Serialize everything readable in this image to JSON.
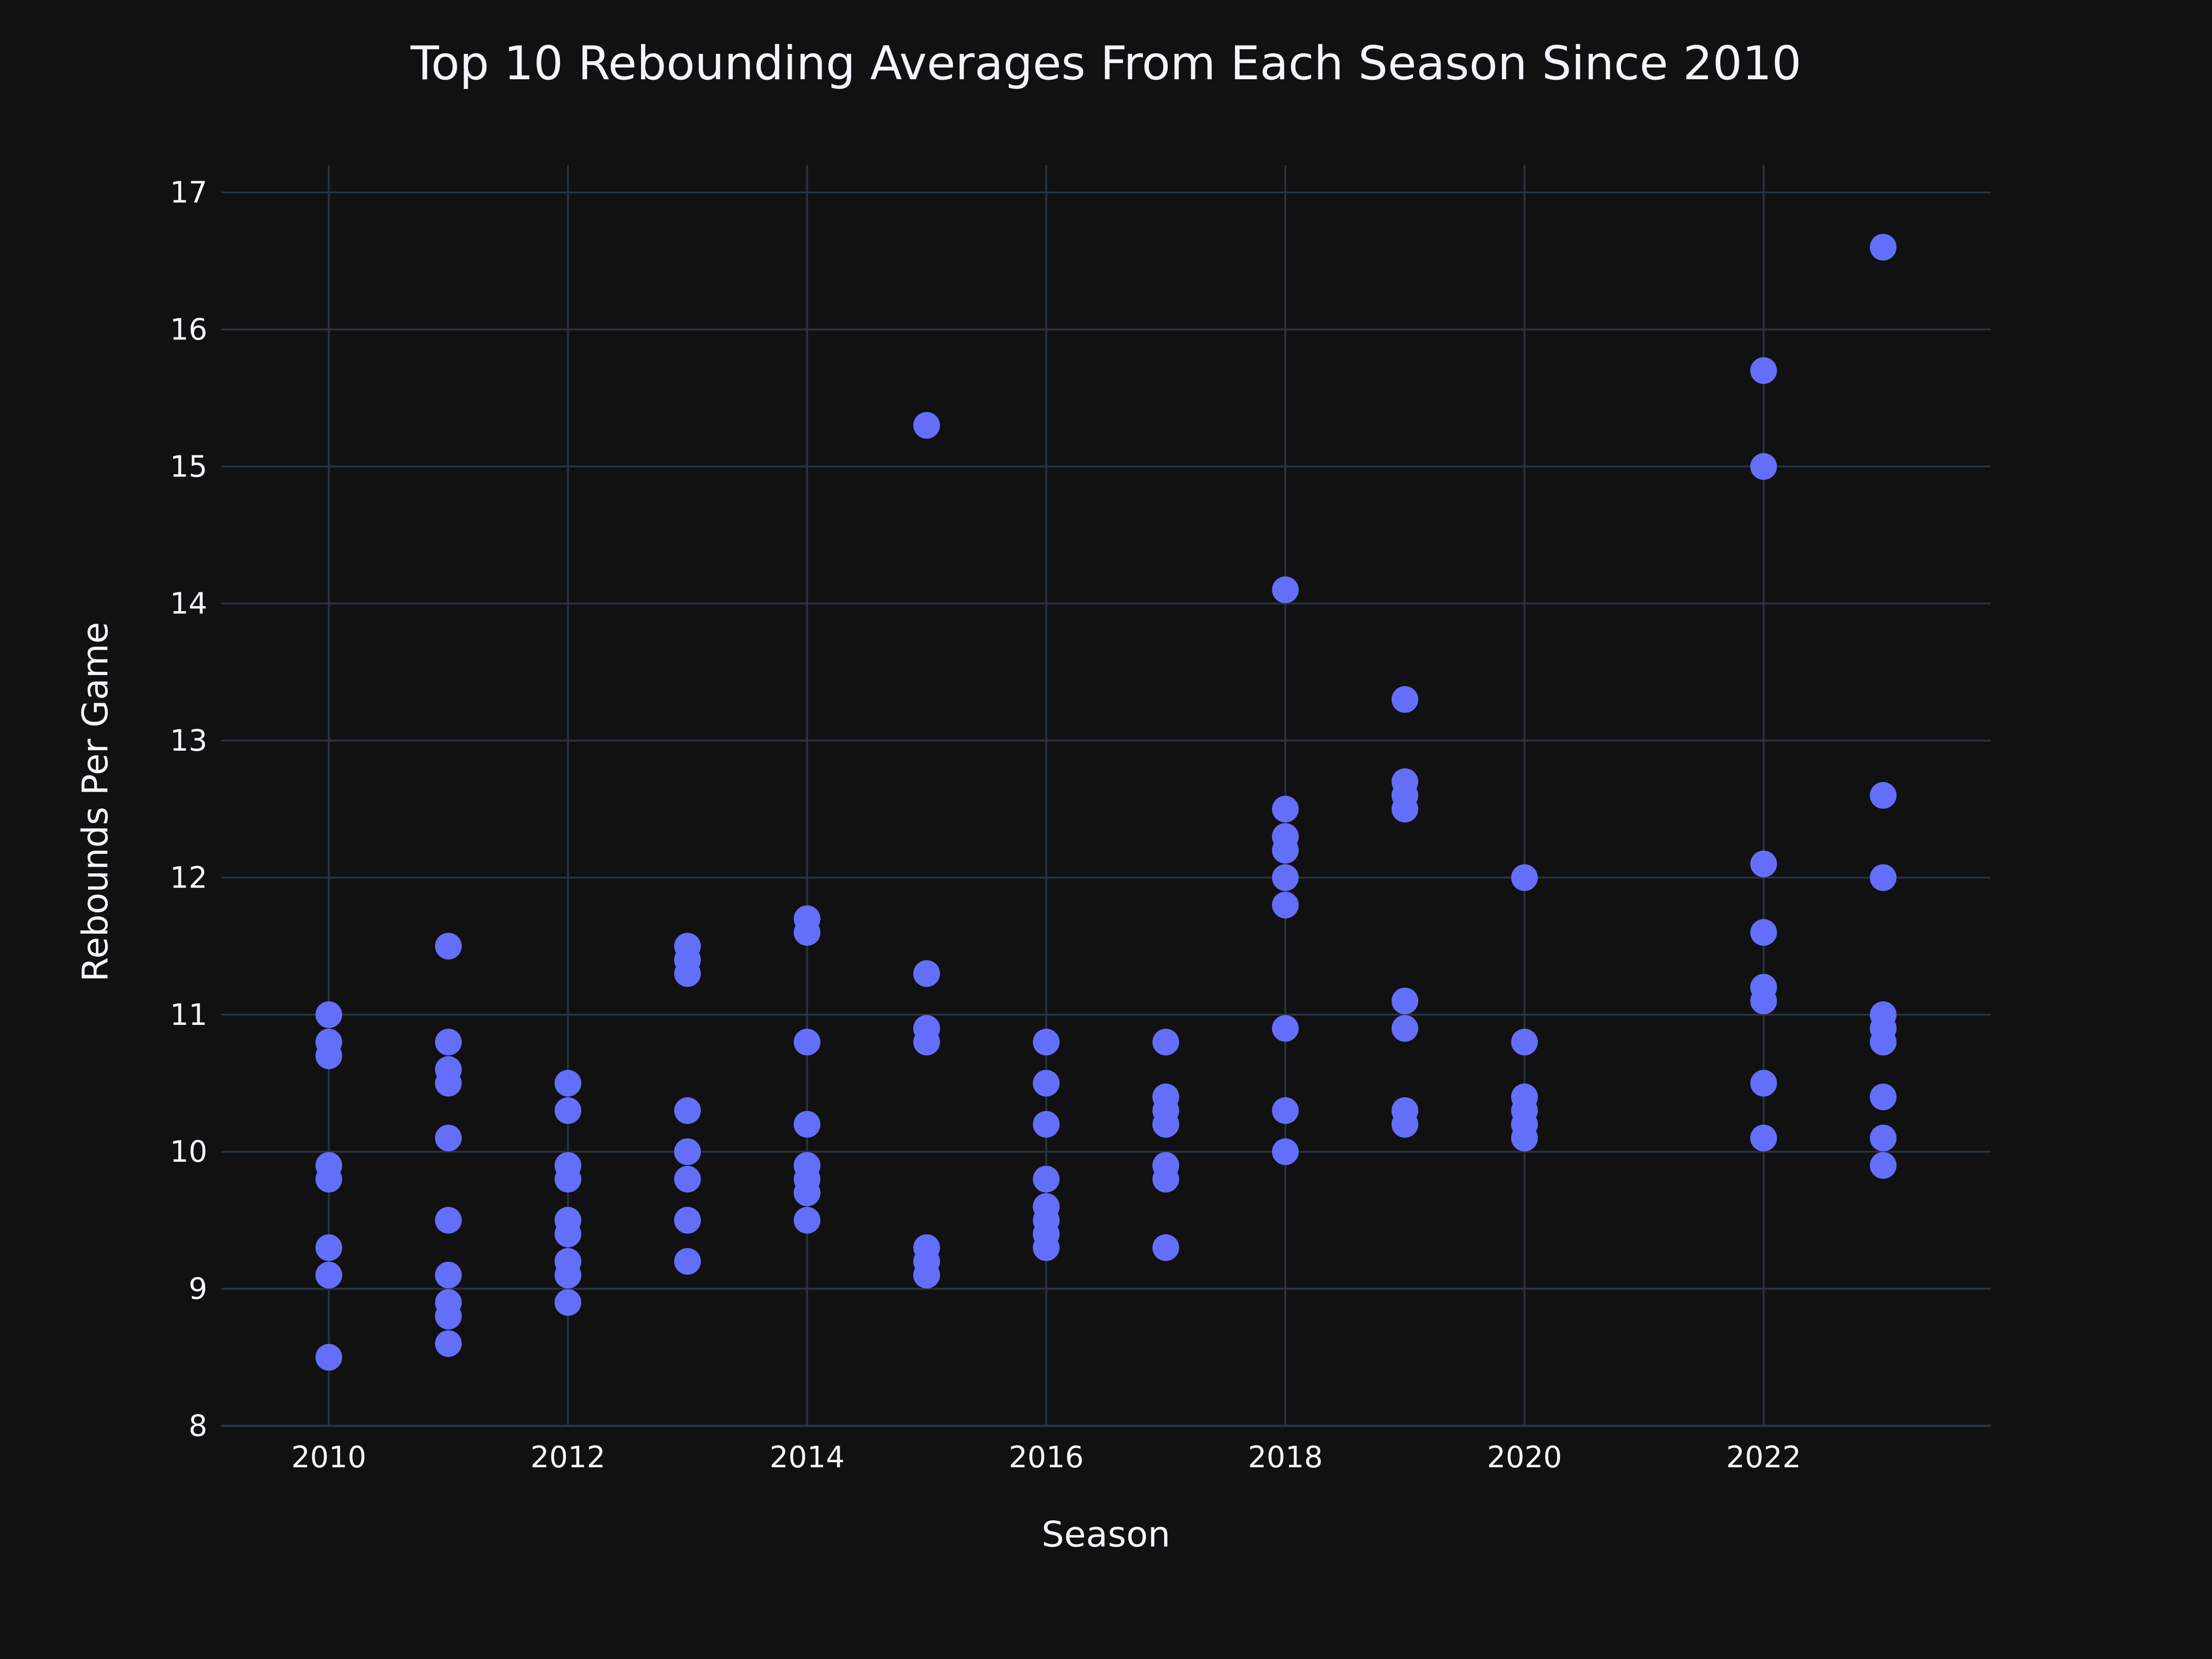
{
  "chart_data": {
    "type": "scatter",
    "title": "Top 10 Rebounding Averages From Each Season Since 2010",
    "xlabel": "Season",
    "ylabel": "Rebounds Per Game",
    "xlim": [
      2009.1,
      2023.9
    ],
    "ylim": [
      8,
      17.2
    ],
    "x_ticks": [
      2010,
      2012,
      2014,
      2016,
      2018,
      2020,
      2022
    ],
    "y_ticks": [
      8,
      9,
      10,
      11,
      12,
      13,
      14,
      15,
      16,
      17
    ],
    "grid": true,
    "legend": "none",
    "colors": {
      "background": "#111111",
      "grid": "#283442",
      "marker": "#636efa",
      "text": "#f2f5fa"
    },
    "points": [
      {
        "x": 2010,
        "y": 11.0
      },
      {
        "x": 2010,
        "y": 10.8
      },
      {
        "x": 2010,
        "y": 10.8
      },
      {
        "x": 2010,
        "y": 10.7
      },
      {
        "x": 2010,
        "y": 9.9
      },
      {
        "x": 2010,
        "y": 9.8
      },
      {
        "x": 2010,
        "y": 9.3
      },
      {
        "x": 2010,
        "y": 9.1
      },
      {
        "x": 2010,
        "y": 9.1
      },
      {
        "x": 2010,
        "y": 8.5
      },
      {
        "x": 2011,
        "y": 11.5
      },
      {
        "x": 2011,
        "y": 10.8
      },
      {
        "x": 2011,
        "y": 10.6
      },
      {
        "x": 2011,
        "y": 10.5
      },
      {
        "x": 2011,
        "y": 10.1
      },
      {
        "x": 2011,
        "y": 9.5
      },
      {
        "x": 2011,
        "y": 9.1
      },
      {
        "x": 2011,
        "y": 8.9
      },
      {
        "x": 2011,
        "y": 8.8
      },
      {
        "x": 2011,
        "y": 8.6
      },
      {
        "x": 2012,
        "y": 10.5
      },
      {
        "x": 2012,
        "y": 10.3
      },
      {
        "x": 2012,
        "y": 9.9
      },
      {
        "x": 2012,
        "y": 9.8
      },
      {
        "x": 2012,
        "y": 9.5
      },
      {
        "x": 2012,
        "y": 9.4
      },
      {
        "x": 2012,
        "y": 9.2
      },
      {
        "x": 2012,
        "y": 9.1
      },
      {
        "x": 2012,
        "y": 8.9
      },
      {
        "x": 2012,
        "y": 9.1
      },
      {
        "x": 2013,
        "y": 11.5
      },
      {
        "x": 2013,
        "y": 11.4
      },
      {
        "x": 2013,
        "y": 11.3
      },
      {
        "x": 2013,
        "y": 10.3
      },
      {
        "x": 2013,
        "y": 10.0
      },
      {
        "x": 2013,
        "y": 9.8
      },
      {
        "x": 2013,
        "y": 9.5
      },
      {
        "x": 2013,
        "y": 9.2
      },
      {
        "x": 2013,
        "y": 10.0
      },
      {
        "x": 2013,
        "y": 9.5
      },
      {
        "x": 2014,
        "y": 11.7
      },
      {
        "x": 2014,
        "y": 11.6
      },
      {
        "x": 2014,
        "y": 10.8
      },
      {
        "x": 2014,
        "y": 10.2
      },
      {
        "x": 2014,
        "y": 9.9
      },
      {
        "x": 2014,
        "y": 9.8
      },
      {
        "x": 2014,
        "y": 9.7
      },
      {
        "x": 2014,
        "y": 9.5
      },
      {
        "x": 2014,
        "y": 9.9
      },
      {
        "x": 2014,
        "y": 9.7
      },
      {
        "x": 2015,
        "y": 15.3
      },
      {
        "x": 2015,
        "y": 11.3
      },
      {
        "x": 2015,
        "y": 10.9
      },
      {
        "x": 2015,
        "y": 10.8
      },
      {
        "x": 2015,
        "y": 9.3
      },
      {
        "x": 2015,
        "y": 9.2
      },
      {
        "x": 2015,
        "y": 9.1
      },
      {
        "x": 2015,
        "y": 9.2
      },
      {
        "x": 2015,
        "y": 9.1
      },
      {
        "x": 2015,
        "y": 10.9
      },
      {
        "x": 2016,
        "y": 10.8
      },
      {
        "x": 2016,
        "y": 10.5
      },
      {
        "x": 2016,
        "y": 10.2
      },
      {
        "x": 2016,
        "y": 9.8
      },
      {
        "x": 2016,
        "y": 9.6
      },
      {
        "x": 2016,
        "y": 9.5
      },
      {
        "x": 2016,
        "y": 9.4
      },
      {
        "x": 2016,
        "y": 9.3
      },
      {
        "x": 2016,
        "y": 9.6
      },
      {
        "x": 2016,
        "y": 9.4
      },
      {
        "x": 2017,
        "y": 10.8
      },
      {
        "x": 2017,
        "y": 10.4
      },
      {
        "x": 2017,
        "y": 10.3
      },
      {
        "x": 2017,
        "y": 10.2
      },
      {
        "x": 2017,
        "y": 9.9
      },
      {
        "x": 2017,
        "y": 9.8
      },
      {
        "x": 2017,
        "y": 9.3
      },
      {
        "x": 2017,
        "y": 10.4
      },
      {
        "x": 2017,
        "y": 10.2
      },
      {
        "x": 2017,
        "y": 9.9
      },
      {
        "x": 2018,
        "y": 14.1
      },
      {
        "x": 2018,
        "y": 12.5
      },
      {
        "x": 2018,
        "y": 12.3
      },
      {
        "x": 2018,
        "y": 12.2
      },
      {
        "x": 2018,
        "y": 12.0
      },
      {
        "x": 2018,
        "y": 11.8
      },
      {
        "x": 2018,
        "y": 10.9
      },
      {
        "x": 2018,
        "y": 10.3
      },
      {
        "x": 2018,
        "y": 10.0
      },
      {
        "x": 2018,
        "y": 12.3
      },
      {
        "x": 2019,
        "y": 13.3
      },
      {
        "x": 2019,
        "y": 12.7
      },
      {
        "x": 2019,
        "y": 12.6
      },
      {
        "x": 2019,
        "y": 12.5
      },
      {
        "x": 2019,
        "y": 11.1
      },
      {
        "x": 2019,
        "y": 10.9
      },
      {
        "x": 2019,
        "y": 10.3
      },
      {
        "x": 2019,
        "y": 10.2
      },
      {
        "x": 2019,
        "y": 10.3
      },
      {
        "x": 2019,
        "y": 10.2
      },
      {
        "x": 2020,
        "y": 12.0
      },
      {
        "x": 2020,
        "y": 10.8
      },
      {
        "x": 2020,
        "y": 10.4
      },
      {
        "x": 2020,
        "y": 10.3
      },
      {
        "x": 2020,
        "y": 10.2
      },
      {
        "x": 2020,
        "y": 10.1
      },
      {
        "x": 2020,
        "y": 10.4
      },
      {
        "x": 2020,
        "y": 10.3
      },
      {
        "x": 2020,
        "y": 10.2
      },
      {
        "x": 2020,
        "y": 10.1
      },
      {
        "x": 2022,
        "y": 15.7
      },
      {
        "x": 2022,
        "y": 15.0
      },
      {
        "x": 2022,
        "y": 12.1
      },
      {
        "x": 2022,
        "y": 11.6
      },
      {
        "x": 2022,
        "y": 11.2
      },
      {
        "x": 2022,
        "y": 11.1
      },
      {
        "x": 2022,
        "y": 10.5
      },
      {
        "x": 2022,
        "y": 10.1
      },
      {
        "x": 2022,
        "y": 11.2
      },
      {
        "x": 2022,
        "y": 10.1
      },
      {
        "x": 2023,
        "y": 16.6
      },
      {
        "x": 2023,
        "y": 12.6
      },
      {
        "x": 2023,
        "y": 12.0
      },
      {
        "x": 2023,
        "y": 11.0
      },
      {
        "x": 2023,
        "y": 10.9
      },
      {
        "x": 2023,
        "y": 10.8
      },
      {
        "x": 2023,
        "y": 10.4
      },
      {
        "x": 2023,
        "y": 10.1
      },
      {
        "x": 2023,
        "y": 9.9
      },
      {
        "x": 2023,
        "y": 10.9
      }
    ]
  }
}
